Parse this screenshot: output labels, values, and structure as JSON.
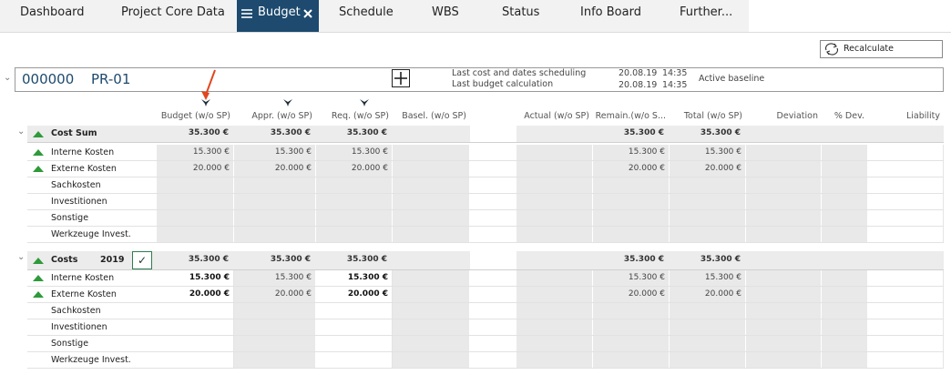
{
  "tabs": [
    "Dashboard",
    "Project Core Data",
    "Budget",
    "Schedule",
    "WBS",
    "Status",
    "Info Board",
    "Further..."
  ],
  "recalculate": "Recalculate",
  "project": {
    "id": "000000",
    "name": "PR-01",
    "info": [
      {
        "label": "Last cost and dates scheduling",
        "date": "20.08.19",
        "time": "14:35"
      },
      {
        "label": "Last budget calculation",
        "date": "20.08.19",
        "time": "14:35"
      }
    ],
    "baseline": "Active baseline"
  },
  "columns": [
    "Budget (w/o SP)",
    "Appr. (w/o SP)",
    "Req. (w/o SP)",
    "Basel. (w/o SP)",
    "Actual (w/o SP)",
    "Remain.(w/o S...",
    "Total (w/o SP)",
    "Deviation",
    "% Dev.",
    "Liability"
  ],
  "sections": [
    {
      "title": "Cost Sum",
      "totals": [
        "35.300 €",
        "35.300 €",
        "35.300 €",
        null,
        null,
        "35.300 €",
        "35.300 €",
        null,
        null,
        null
      ],
      "rows": [
        {
          "label": "Interne Kosten",
          "values": [
            "15.300 €",
            "15.300 €",
            "15.300 €",
            null,
            null,
            "15.300 €",
            "15.300 €",
            null,
            null,
            null
          ]
        },
        {
          "label": "Externe Kosten",
          "values": [
            "20.000 €",
            "20.000 €",
            "20.000 €",
            null,
            null,
            "20.000 €",
            "20.000 €",
            null,
            null,
            null
          ]
        },
        {
          "label": "Sachkosten",
          "values": [
            null,
            null,
            null,
            null,
            null,
            null,
            null,
            null,
            null,
            null
          ]
        },
        {
          "label": "Investitionen",
          "values": [
            null,
            null,
            null,
            null,
            null,
            null,
            null,
            null,
            null,
            null
          ]
        },
        {
          "label": "Sonstige",
          "values": [
            null,
            null,
            null,
            null,
            null,
            null,
            null,
            null,
            null,
            null
          ]
        },
        {
          "label": "Werkzeuge Invest.",
          "values": [
            null,
            null,
            null,
            null,
            null,
            null,
            null,
            null,
            null,
            null
          ]
        }
      ]
    },
    {
      "title": "Costs",
      "year": "2019",
      "totals": [
        "35.300 €",
        "35.300 €",
        "35.300 €",
        null,
        null,
        "35.300 €",
        "35.300 €",
        null,
        null,
        null
      ],
      "rows": [
        {
          "label": "Interne Kosten",
          "values": [
            "15.300 €",
            "15.300 €",
            "15.300 €",
            null,
            null,
            "15.300 €",
            "15.300 €",
            null,
            null,
            null
          ]
        },
        {
          "label": "Externe Kosten",
          "values": [
            "20.000 €",
            "20.000 €",
            "20.000 €",
            null,
            null,
            "20.000 €",
            "20.000 €",
            null,
            null,
            null
          ]
        },
        {
          "label": "Sachkosten",
          "values": [
            null,
            null,
            null,
            null,
            null,
            null,
            null,
            null,
            null,
            null
          ]
        },
        {
          "label": "Investitionen",
          "values": [
            null,
            null,
            null,
            null,
            null,
            null,
            null,
            null,
            null,
            null
          ]
        },
        {
          "label": "Sonstige",
          "values": [
            null,
            null,
            null,
            null,
            null,
            null,
            null,
            null,
            null,
            null
          ]
        },
        {
          "label": "Werkzeuge Invest.",
          "values": [
            null,
            null,
            null,
            null,
            null,
            null,
            null,
            null,
            null,
            null
          ]
        }
      ]
    }
  ]
}
